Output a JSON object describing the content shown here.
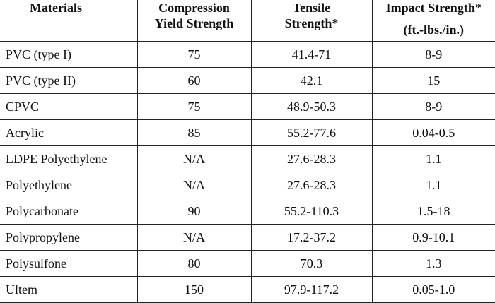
{
  "table": {
    "headers": {
      "materials": "Materials",
      "compression_line1": "Compression",
      "compression_line2": "Yield Strength",
      "tensile_line1": "Tensile",
      "tensile_line2": "Strength",
      "tensile_asterisk": "*",
      "impact_line1": "Impact Strength",
      "impact_asterisk": "*",
      "impact_unit": "(ft.-lbs./in.)"
    },
    "rows": [
      {
        "material": "PVC (type I)",
        "compression": "75",
        "tensile": "41.4-71",
        "impact": "8-9"
      },
      {
        "material": "PVC (type II)",
        "compression": "60",
        "tensile": "42.1",
        "impact": "15"
      },
      {
        "material": "CPVC",
        "compression": "75",
        "tensile": "48.9-50.3",
        "impact": "8-9"
      },
      {
        "material": "Acrylic",
        "compression": "85",
        "tensile": "55.2-77.6",
        "impact": "0.04-0.5"
      },
      {
        "material": "LDPE Polyethylene",
        "compression": "N/A",
        "tensile": "27.6-28.3",
        "impact": "1.1"
      },
      {
        "material": "Polyethylene",
        "compression": "N/A",
        "tensile": "27.6-28.3",
        "impact": "1.1"
      },
      {
        "material": "Polycarbonate",
        "compression": "90",
        "tensile": "55.2-110.3",
        "impact": "1.5-18"
      },
      {
        "material": "Polypropylene",
        "compression": "N/A",
        "tensile": "17.2-37.2",
        "impact": "0.9-10.1"
      },
      {
        "material": "Polysulfone",
        "compression": "80",
        "tensile": "70.3",
        "impact": "1.3"
      },
      {
        "material": "Ultem",
        "compression": "150",
        "tensile": "97.9-117.2",
        "impact": "0.05-1.0"
      }
    ]
  }
}
